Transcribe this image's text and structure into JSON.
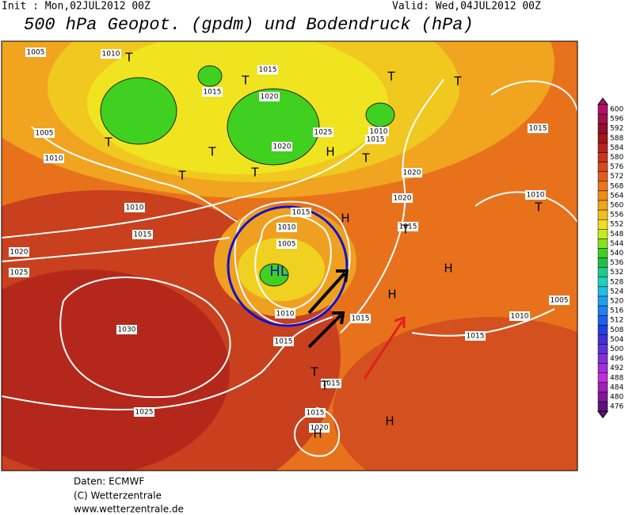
{
  "header": {
    "init": "Init : Mon,02JUL2012 00Z",
    "valid": "Valid: Wed,04JUL2012 00Z",
    "title": "500 hPa Geopot. (gpdm) und Bodendruck (hPa)"
  },
  "map": {
    "labels": [
      "1005",
      "1010",
      "T",
      "T",
      "T",
      "T",
      "1015",
      "1020",
      "1025",
      "1015",
      "1010",
      "1015",
      "1020",
      "1020",
      "1015",
      "1010",
      "1005",
      "1010",
      "1010",
      "1015",
      "1020",
      "1025",
      "T",
      "T",
      "T",
      "T",
      "T",
      "H",
      "H",
      "1015",
      "1010",
      "1005",
      "HL",
      "1010",
      "1015",
      "1015",
      "H",
      "H",
      "1030",
      "1015",
      "1010",
      "1005",
      "T",
      "T",
      "1015",
      "1025",
      "1015",
      "1020",
      "H",
      "H",
      "T",
      "T",
      "1020",
      "1015"
    ]
  },
  "colorbar": {
    "levels": [
      600,
      596,
      592,
      588,
      584,
      580,
      576,
      572,
      568,
      564,
      560,
      556,
      552,
      548,
      544,
      540,
      536,
      532,
      528,
      524,
      520,
      516,
      512,
      508,
      504,
      500,
      496,
      492,
      488,
      484,
      480,
      476
    ],
    "colors": [
      "#b0106a",
      "#a0104c",
      "#901030",
      "#a01818",
      "#b42420",
      "#c83420",
      "#d84820",
      "#e45c1c",
      "#ec741a",
      "#f08c1a",
      "#f2a61e",
      "#f2c020",
      "#f0de20",
      "#c8ea20",
      "#88e020",
      "#40d020",
      "#20c048",
      "#20c890",
      "#20d0c0",
      "#20c0e8",
      "#20a0f0",
      "#2080f0",
      "#2060e8",
      "#2040e0",
      "#4030d8",
      "#6030d8",
      "#8030d8",
      "#a030d8",
      "#c030d8",
      "#a020b8",
      "#801898",
      "#601078"
    ]
  },
  "footer": {
    "lines": [
      "Daten: ECMWF",
      "(C) Wetterzentrale",
      "www.wetterzentrale.de"
    ]
  }
}
